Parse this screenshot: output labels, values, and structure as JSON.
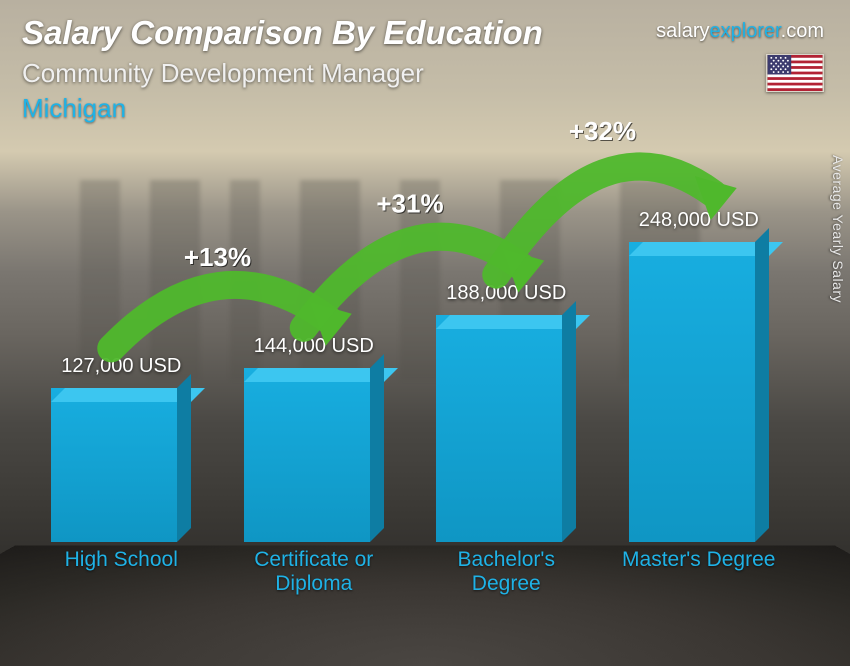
{
  "header": {
    "title": "Salary Comparison By Education",
    "subtitle": "Community Development Manager",
    "location": "Michigan"
  },
  "brand": {
    "text_plain": "salary",
    "text_accent": "explorer",
    "suffix": ".com"
  },
  "axis_label": "Average Yearly Salary",
  "chart": {
    "type": "bar",
    "y_max": 248000,
    "bar_colors": {
      "front": "#18aee0",
      "side": "#0e7da3",
      "top": "#3cc6f0"
    },
    "value_suffix": " USD",
    "bars": [
      {
        "label": "High School",
        "value": 127000,
        "value_text": "127,000 USD"
      },
      {
        "label": "Certificate or Diploma",
        "value": 144000,
        "value_text": "144,000 USD"
      },
      {
        "label": "Bachelor's Degree",
        "value": 188000,
        "value_text": "188,000 USD"
      },
      {
        "label": "Master's Degree",
        "value": 248000,
        "value_text": "248,000 USD"
      }
    ],
    "increments": [
      {
        "text": "+13%",
        "arrow_color": "#4fb82c"
      },
      {
        "text": "+31%",
        "arrow_color": "#4fb82c"
      },
      {
        "text": "+32%",
        "arrow_color": "#4fb82c"
      }
    ],
    "label_color": "#1fb2e6",
    "value_color": "#ffffff",
    "title_fontsize": 33,
    "subtitle_fontsize": 26,
    "label_fontsize": 21,
    "value_fontsize": 20,
    "pct_fontsize": 26
  },
  "flag": "us"
}
